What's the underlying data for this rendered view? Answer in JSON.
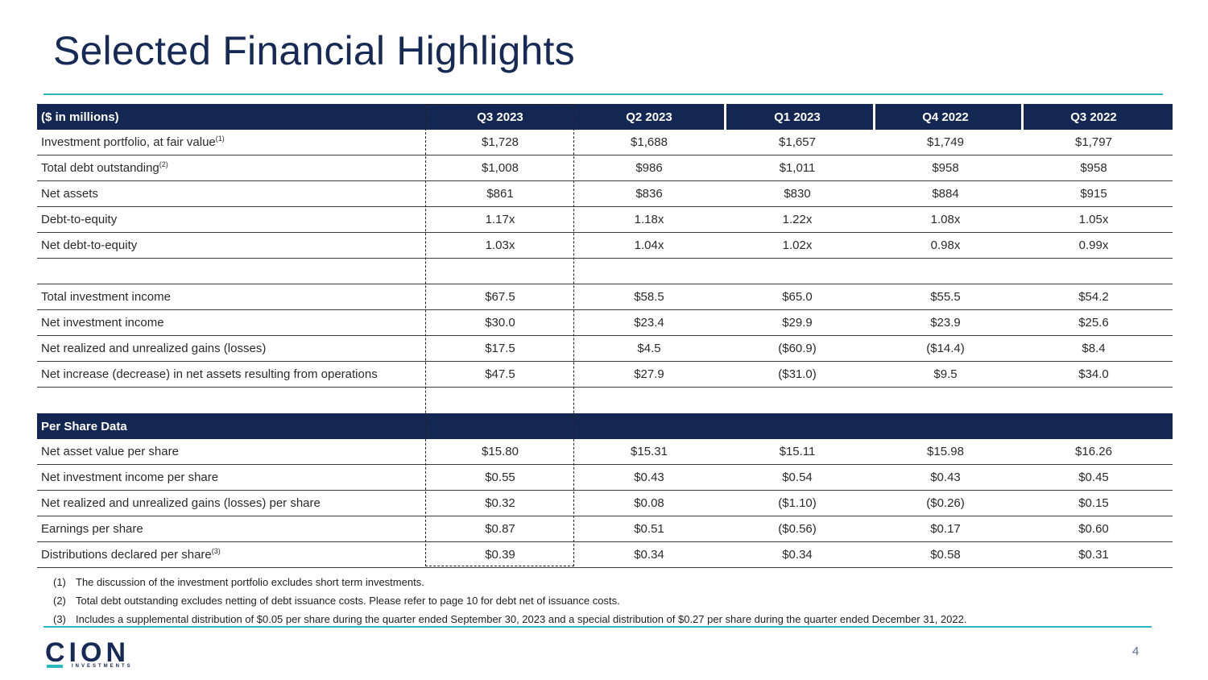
{
  "title": "Selected Financial Highlights",
  "table": {
    "header_label": "($ in millions)",
    "columns": [
      "Q3 2023",
      "Q2 2023",
      "Q1 2023",
      "Q4 2022",
      "Q3 2022"
    ],
    "rows_a": [
      {
        "label": "Investment portfolio, at fair value",
        "note": "(1)",
        "values": [
          "$1,728",
          "$1,688",
          "$1,657",
          "$1,749",
          "$1,797"
        ]
      },
      {
        "label": "Total debt outstanding",
        "note": "(2)",
        "values": [
          "$1,008",
          "$986",
          "$1,011",
          "$958",
          "$958"
        ]
      },
      {
        "label": "Net assets",
        "note": "",
        "values": [
          "$861",
          "$836",
          "$830",
          "$884",
          "$915"
        ]
      },
      {
        "label": "Debt-to-equity",
        "note": "",
        "values": [
          "1.17x",
          "1.18x",
          "1.22x",
          "1.08x",
          "1.05x"
        ]
      },
      {
        "label": "Net debt-to-equity",
        "note": "",
        "values": [
          "1.03x",
          "1.04x",
          "1.02x",
          "0.98x",
          "0.99x"
        ]
      }
    ],
    "rows_b": [
      {
        "label": "Total investment income",
        "values": [
          "$67.5",
          "$58.5",
          "$65.0",
          "$55.5",
          "$54.2"
        ]
      },
      {
        "label": "Net investment income",
        "values": [
          "$30.0",
          "$23.4",
          "$29.9",
          "$23.9",
          "$25.6"
        ]
      },
      {
        "label": "Net realized and unrealized gains (losses)",
        "values": [
          "$17.5",
          "$4.5",
          "($60.9)",
          "($14.4)",
          "$8.4"
        ]
      },
      {
        "label": "Net increase (decrease) in net assets resulting from operations",
        "values": [
          "$47.5",
          "$27.9",
          "($31.0)",
          "$9.5",
          "$34.0"
        ]
      }
    ],
    "section_label": "Per Share Data",
    "rows_c": [
      {
        "label": "Net asset value per share",
        "note": "",
        "values": [
          "$15.80",
          "$15.31",
          "$15.11",
          "$15.98",
          "$16.26"
        ]
      },
      {
        "label": "Net investment income per share",
        "note": "",
        "values": [
          "$0.55",
          "$0.43",
          "$0.54",
          "$0.43",
          "$0.45"
        ]
      },
      {
        "label": "Net realized and unrealized gains (losses) per share",
        "note": "",
        "values": [
          "$0.32",
          "$0.08",
          "($1.10)",
          "($0.26)",
          "$0.15"
        ]
      },
      {
        "label": "Earnings per share",
        "note": "",
        "values": [
          "$0.87",
          "$0.51",
          "($0.56)",
          "$0.17",
          "$0.60"
        ]
      },
      {
        "label": "Distributions declared per share",
        "note": "(3)",
        "values": [
          "$0.39",
          "$0.34",
          "$0.34",
          "$0.58",
          "$0.31"
        ]
      }
    ]
  },
  "footnotes": [
    {
      "num": "(1)",
      "text": "The discussion of the investment portfolio excludes short term investments."
    },
    {
      "num": "(2)",
      "text": "Total debt outstanding excludes netting of debt issuance costs. Please refer to page 10 for debt net of issuance costs."
    },
    {
      "num": "(3)",
      "text": "Includes a supplemental distribution of $0.05 per share during the quarter ended September 30, 2023 and a special distribution of $0.27 per share during the quarter ended December 31, 2022."
    }
  ],
  "logo": {
    "word": "CION",
    "sub": "INVESTMENTS"
  },
  "page_number": "4"
}
